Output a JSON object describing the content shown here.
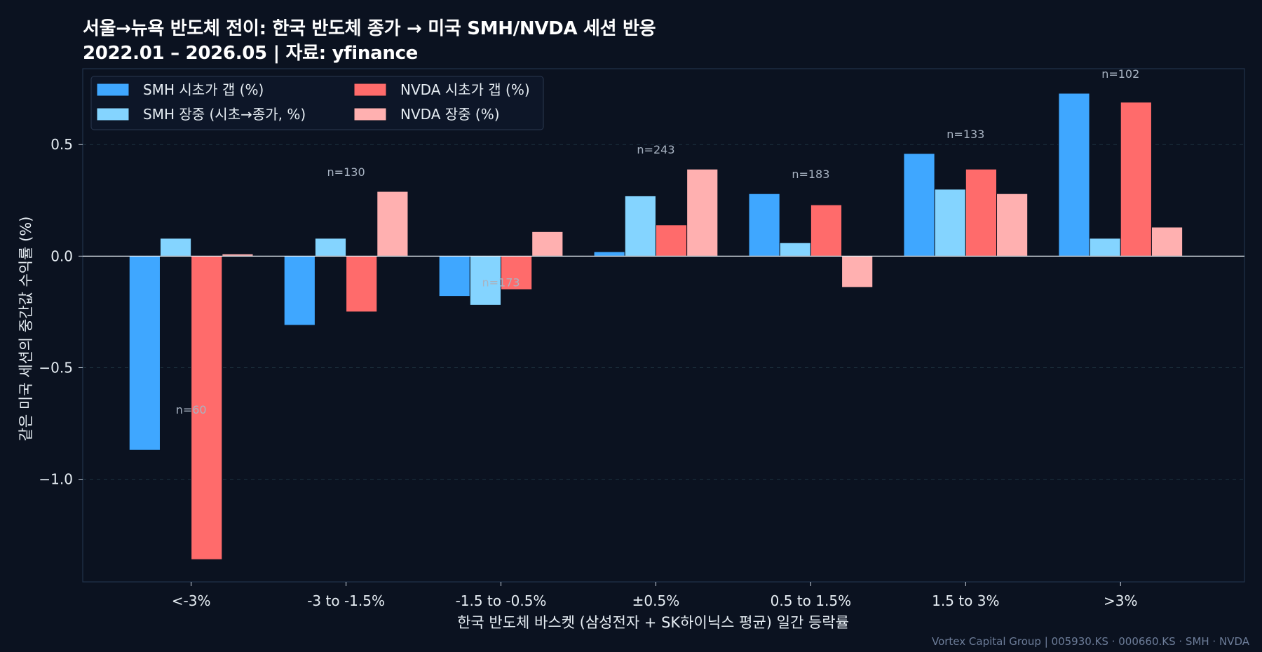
{
  "chart_data": {
    "type": "bar",
    "title_line1": "서울→뉴욕 반도체 전이: 한국 반도체 종가 → 미국 SMH/NVDA 세션 반응",
    "title_line2": "2022.01 – 2026.05 | 자료: yfinance",
    "xlabel": "한국 반도체 바스켓 (삼성전자 + SK하이닉스 평균) 일간 등락률",
    "ylabel": "같은 미국 세션의 중간값 수익률 (%)",
    "categories": [
      "<-3%",
      "-3 to -1.5%",
      "-1.5 to -0.5%",
      "±0.5%",
      "0.5 to 1.5%",
      "1.5 to 3%",
      ">3%"
    ],
    "counts": [
      "n=60",
      "n=130",
      "n=173",
      "n=243",
      "n=183",
      "n=133",
      "n=102"
    ],
    "series": [
      {
        "name": "SMH 시초가 갭 (%)",
        "color": "#3fa7ff",
        "values": [
          -0.87,
          -0.31,
          -0.18,
          0.02,
          0.28,
          0.46,
          0.73
        ]
      },
      {
        "name": "SMH 장중 (시초→종가, %)",
        "color": "#84d4ff",
        "values": [
          0.08,
          0.08,
          -0.22,
          0.27,
          0.06,
          0.3,
          0.08
        ]
      },
      {
        "name": "NVDA 시초가 갭 (%)",
        "color": "#ff6b6b",
        "values": [
          -1.36,
          -0.25,
          -0.15,
          0.14,
          0.23,
          0.39,
          0.69
        ]
      },
      {
        "name": "NVDA 장중 (%)",
        "color": "#ffb0b0",
        "values": [
          0.01,
          0.29,
          0.11,
          0.39,
          -0.14,
          0.28,
          0.13
        ]
      }
    ],
    "ylim": [
      -1.46,
      0.84
    ],
    "yticks": [
      0.5,
      0.0,
      -0.5,
      -1.0
    ],
    "ytick_labels": [
      "0.5",
      "0.0",
      "−0.5",
      "−1.0"
    ],
    "grid": true,
    "legend_position": "top-left",
    "footer": "Vortex Capital Group | 005930.KS · 000660.KS · SMH · NVDA"
  }
}
